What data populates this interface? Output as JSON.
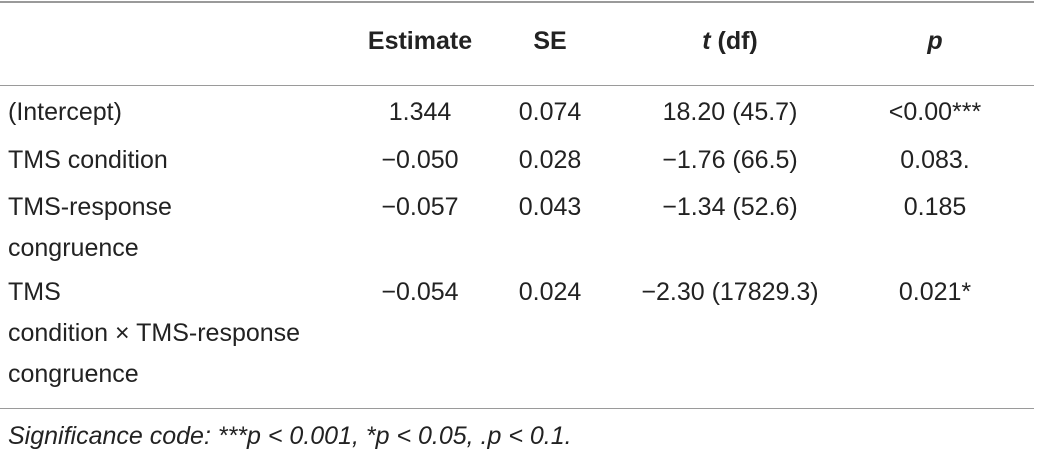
{
  "table": {
    "headers": {
      "label": "",
      "estimate": "Estimate",
      "se": "SE",
      "t_italic": "t",
      "t_rest": " (df)",
      "p": "p"
    },
    "rows": [
      {
        "label_lines": [
          "(Intercept)"
        ],
        "estimate": "1.344",
        "se": "0.074",
        "t": "18.20 (45.7)",
        "p": "<0.00***"
      },
      {
        "label_lines": [
          "TMS condition"
        ],
        "estimate": "−0.050",
        "se": "0.028",
        "t": "−1.76 (66.5)",
        "p": "0.083."
      },
      {
        "label_lines": [
          "TMS-response",
          "congruence"
        ],
        "estimate": "−0.057",
        "se": "0.043",
        "t": "−1.34 (52.6)",
        "p": "0.185"
      },
      {
        "label_lines": [
          "TMS",
          "condition × TMS-response",
          "congruence"
        ],
        "estimate": "−0.054",
        "se": "0.024",
        "t": "−2.30 (17829.3)",
        "p": "0.021*"
      }
    ]
  },
  "footnote": "Significance code: ***p < 0.001, *p < 0.05, .p < 0.1."
}
